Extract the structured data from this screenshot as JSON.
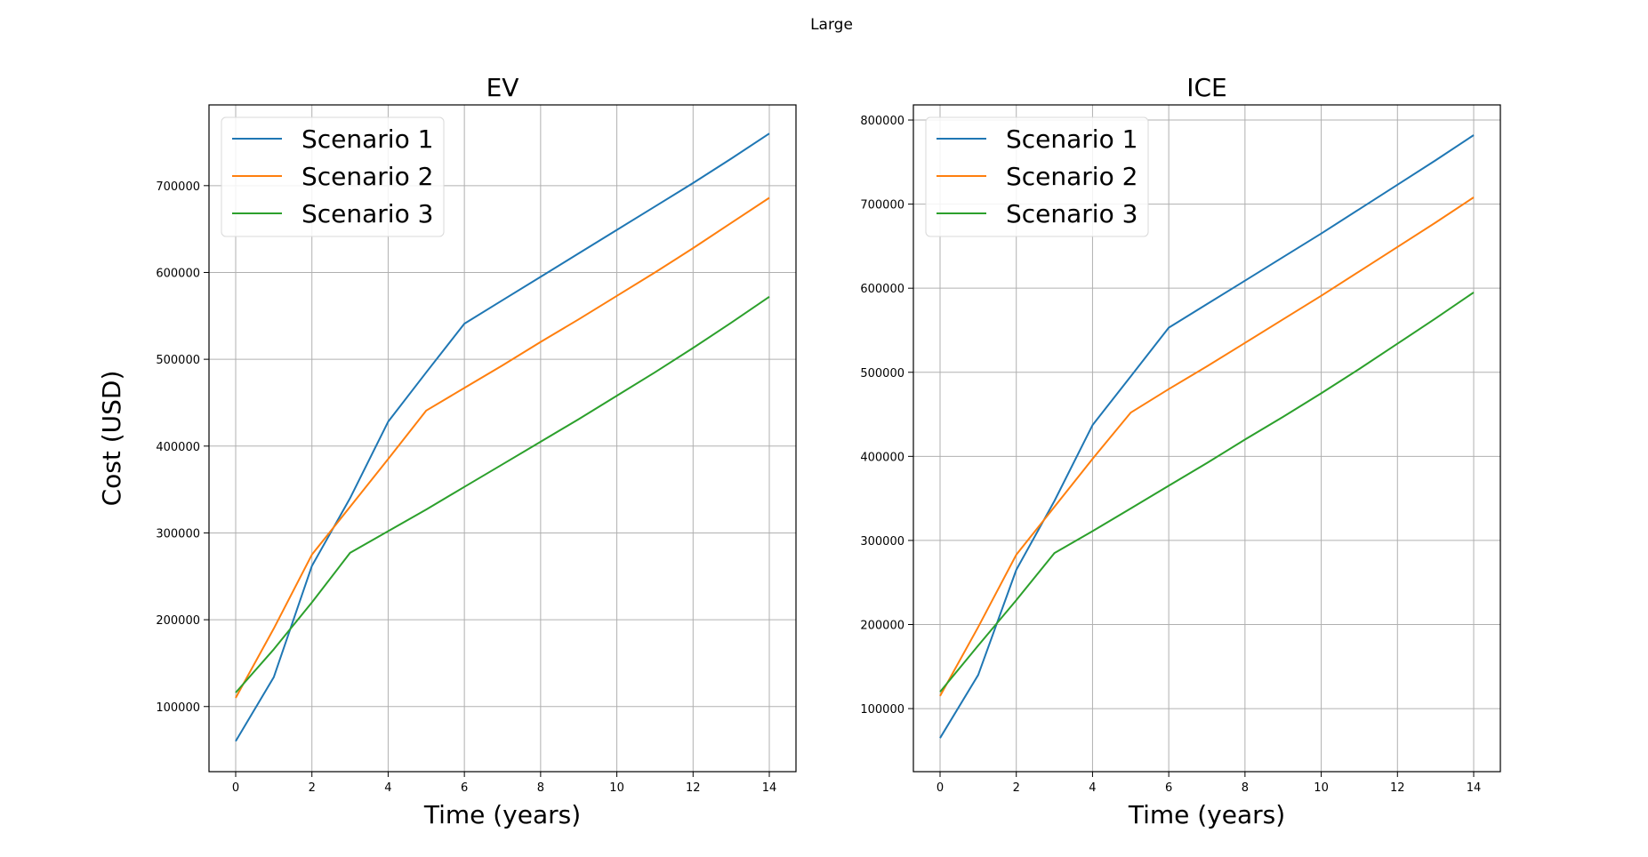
{
  "figure": {
    "suptitle": "Large"
  },
  "legend_entries": [
    "Scenario 1",
    "Scenario 2",
    "Scenario 3"
  ],
  "colors": {
    "s1": "#1f77b4",
    "s2": "#ff7f0e",
    "s3": "#2ca02c",
    "grid": "#b0b0b0"
  },
  "chart_data": [
    {
      "type": "line",
      "title": "EV",
      "xlabel": "Time (years)",
      "ylabel": "Cost (USD)",
      "xlim": [
        -0.7,
        14.7
      ],
      "ylim": [
        25000,
        793000
      ],
      "xticks": [
        0,
        2,
        4,
        6,
        8,
        10,
        12,
        14
      ],
      "yticks": [
        100000,
        200000,
        300000,
        400000,
        500000,
        600000,
        700000
      ],
      "grid": true,
      "legend": "upper-left",
      "x": [
        0,
        1,
        2,
        3,
        4,
        5,
        6,
        7,
        8,
        9,
        10,
        11,
        12,
        13,
        14
      ],
      "series": [
        {
          "name": "Scenario 1",
          "color": "#1f77b4",
          "values": [
            60000,
            134000,
            262000,
            340000,
            428000,
            485000,
            541000,
            568000,
            595000,
            622000,
            649000,
            676000,
            703000,
            731000,
            760000
          ]
        },
        {
          "name": "Scenario 2",
          "color": "#ff7f0e",
          "values": [
            110000,
            190000,
            275000,
            330000,
            385000,
            441000,
            467000,
            493000,
            520000,
            546000,
            573000,
            600000,
            628000,
            657000,
            686000
          ]
        },
        {
          "name": "Scenario 3",
          "color": "#2ca02c",
          "values": [
            116000,
            166000,
            220000,
            277000,
            302000,
            327000,
            353000,
            379000,
            405000,
            431000,
            458000,
            485000,
            513000,
            542000,
            572000
          ]
        }
      ]
    },
    {
      "type": "line",
      "title": "ICE",
      "xlabel": "Time (years)",
      "ylabel": "",
      "xlim": [
        -0.7,
        14.7
      ],
      "ylim": [
        25000,
        818000
      ],
      "xticks": [
        0,
        2,
        4,
        6,
        8,
        10,
        12,
        14
      ],
      "yticks": [
        100000,
        200000,
        300000,
        400000,
        500000,
        600000,
        700000,
        800000
      ],
      "grid": true,
      "legend": "upper-left",
      "x": [
        0,
        1,
        2,
        3,
        4,
        5,
        6,
        7,
        8,
        9,
        10,
        11,
        12,
        13,
        14
      ],
      "series": [
        {
          "name": "Scenario 1",
          "color": "#1f77b4",
          "values": [
            65000,
            140000,
            265000,
            347000,
            437000,
            495000,
            553000,
            581000,
            609000,
            637000,
            665000,
            694000,
            723000,
            752000,
            782000
          ]
        },
        {
          "name": "Scenario 2",
          "color": "#ff7f0e",
          "values": [
            115000,
            197000,
            283000,
            340000,
            397000,
            452000,
            480000,
            507000,
            535000,
            563000,
            591000,
            620000,
            649000,
            678000,
            708000
          ]
        },
        {
          "name": "Scenario 3",
          "color": "#2ca02c",
          "values": [
            120000,
            175000,
            229000,
            285000,
            311000,
            338000,
            365000,
            392000,
            420000,
            447000,
            475000,
            504000,
            534000,
            564000,
            595000
          ]
        }
      ]
    }
  ]
}
